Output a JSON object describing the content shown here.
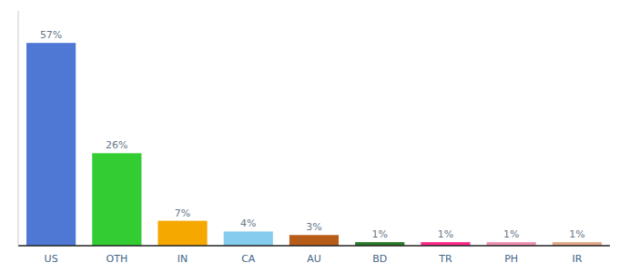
{
  "chart_data": {
    "type": "bar",
    "categories": [
      "US",
      "OTH",
      "IN",
      "CA",
      "AU",
      "BD",
      "TR",
      "PH",
      "IR"
    ],
    "values": [
      57,
      26,
      7,
      4,
      3,
      1,
      1,
      1,
      1
    ],
    "value_labels": [
      "57%",
      "26%",
      "7%",
      "4%",
      "3%",
      "1%",
      "1%",
      "1%",
      "1%"
    ],
    "colors": [
      "#4f77d4",
      "#33cc33",
      "#f5a800",
      "#85ccee",
      "#b85c1a",
      "#2a7a2a",
      "#ff2a8a",
      "#f090b0",
      "#e0a888"
    ],
    "ylim": [
      0,
      66
    ],
    "grid": false,
    "data_labels": true,
    "tick_labels": "x"
  }
}
